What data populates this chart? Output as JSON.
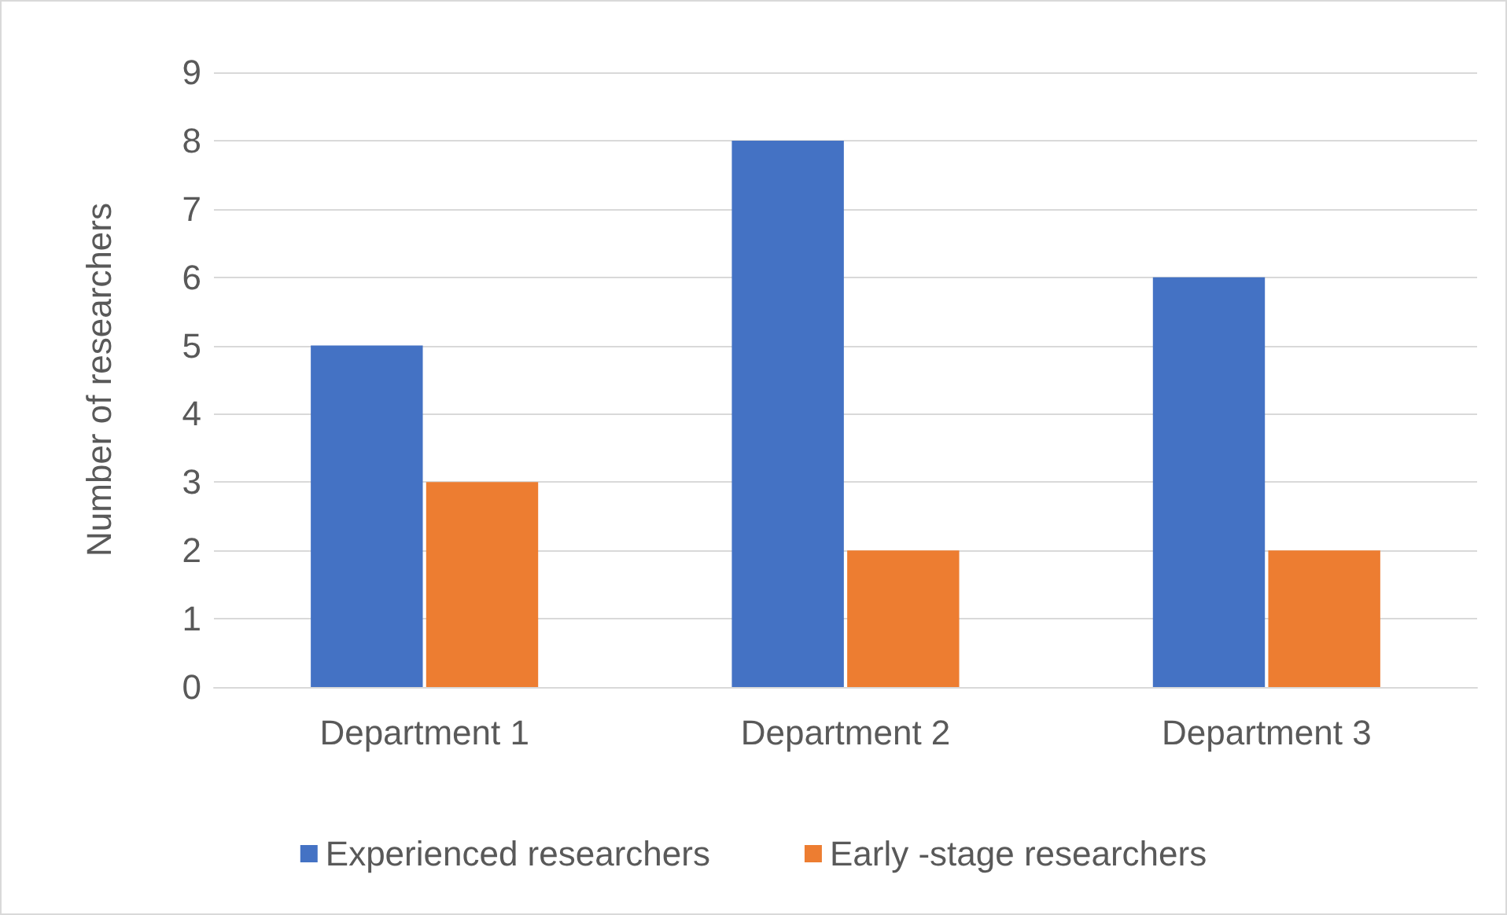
{
  "chart_data": {
    "type": "bar",
    "ylabel": "Number of researchers",
    "categories": [
      "Department 1",
      "Department 2",
      "Department 3"
    ],
    "series": [
      {
        "name": "Experienced researchers",
        "color": "#4472c4",
        "values": [
          5,
          8,
          6
        ]
      },
      {
        "name": "Early -stage researchers",
        "color": "#ed7d31",
        "values": [
          3,
          2,
          2
        ]
      }
    ],
    "ylim": [
      0,
      9
    ],
    "yticks": [
      0,
      1,
      2,
      3,
      4,
      5,
      6,
      7,
      8,
      9
    ],
    "grid": "y",
    "legend": "bottom"
  }
}
